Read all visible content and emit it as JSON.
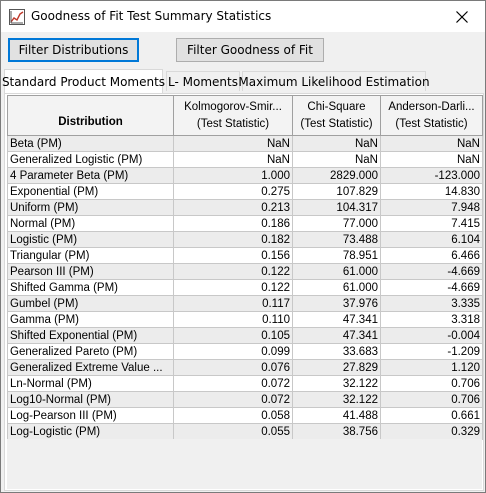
{
  "window": {
    "title": "Goodness of Fit Test Summary Statistics",
    "icon": "chart-icon",
    "close_icon": "close-icon"
  },
  "toolbar": {
    "filter_distributions": "Filter Distributions",
    "filter_goodness_of_fit": "Filter Goodness of Fit"
  },
  "tabs": [
    {
      "label": "Standard Product Moments",
      "active": true
    },
    {
      "label": "L- Moments",
      "active": false
    },
    {
      "label": "Maximum Likelihood Estimation",
      "active": false
    }
  ],
  "table": {
    "columns": [
      {
        "line1": "Distribution",
        "line2": ""
      },
      {
        "line1": "Kolmogorov-Smir...",
        "line2": "(Test Statistic)"
      },
      {
        "line1": "Chi-Square",
        "line2": "(Test Statistic)"
      },
      {
        "line1": "Anderson-Darli...",
        "line2": "(Test Statistic)"
      }
    ],
    "rows": [
      [
        "Beta (PM)",
        "NaN",
        "NaN",
        "NaN"
      ],
      [
        "Generalized Logistic (PM)",
        "NaN",
        "NaN",
        "NaN"
      ],
      [
        "4 Parameter Beta (PM)",
        "1.000",
        "2829.000",
        "-123.000"
      ],
      [
        "Exponential (PM)",
        "0.275",
        "107.829",
        "14.830"
      ],
      [
        "Uniform (PM)",
        "0.213",
        "104.317",
        "7.948"
      ],
      [
        "Normal (PM)",
        "0.186",
        "77.000",
        "7.415"
      ],
      [
        "Logistic (PM)",
        "0.182",
        "73.488",
        "6.104"
      ],
      [
        "Triangular (PM)",
        "0.156",
        "78.951",
        "6.466"
      ],
      [
        "Pearson III (PM)",
        "0.122",
        "61.000",
        "-4.669"
      ],
      [
        "Shifted Gamma (PM)",
        "0.122",
        "61.000",
        "-4.669"
      ],
      [
        "Gumbel (PM)",
        "0.117",
        "37.976",
        "3.335"
      ],
      [
        "Gamma (PM)",
        "0.110",
        "47.341",
        "3.318"
      ],
      [
        "Shifted Exponential (PM)",
        "0.105",
        "47.341",
        "-0.004"
      ],
      [
        "Generalized Pareto (PM)",
        "0.099",
        "33.683",
        "-1.209"
      ],
      [
        "Generalized Extreme Value ...",
        "0.076",
        "27.829",
        "1.120"
      ],
      [
        "Ln-Normal (PM)",
        "0.072",
        "32.122",
        "0.706"
      ],
      [
        "Log10-Normal (PM)",
        "0.072",
        "32.122",
        "0.706"
      ],
      [
        "Log-Pearson III (PM)",
        "0.058",
        "41.488",
        "0.661"
      ],
      [
        "Log-Logistic (PM)",
        "0.055",
        "38.756",
        "0.329"
      ]
    ]
  }
}
